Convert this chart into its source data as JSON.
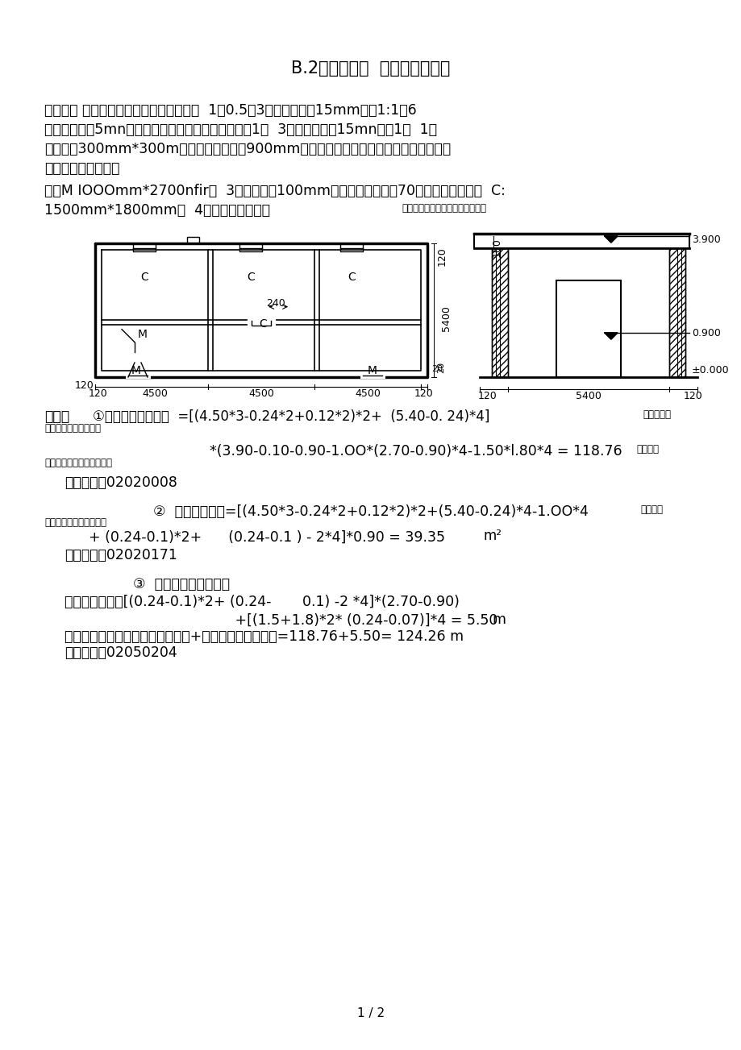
{
  "title": "B.2墙柱面工程  课堂作业及答案",
  "background_color": "#ffffff",
  "p1_line1": "《习题》 某工程如图所示，内砖墙墙面抖  1：0.5：3混合砂浆打幵15mm厚，1:1：6",
  "p1_line2": "混合砂浆面层5mn厚，双飞粉膁子两遍；内墙裙采用1：  3水泥砂浆打幵15mn厚，1：  1水",
  "p1_line3": "泥砂浆贴300mm*300m陶瓷面砖，墙裙高900mm计算内墙面、墙裙抖灰及刁膁子工程量，",
  "p1_line4": "确定套用定额子目。",
  "p2_line1": "木门M IOOOmm*2700nfir共  3个，门框厚100mm按墙中心线安装；70系列铝合金推拉窗  C:",
  "p2_line2": "1500mm*1800mm共  4个，靠外墙安装。",
  "p2_small": "资料个人收集整理，勿做商业用途",
  "sol_label": "》解《",
  "sol_1a": "①内墙面抖灰工程量  =[(4.50*3-0.24*2+0.12*2)*2+  (5.40-0. 24)*4]",
  "sol_1a_r": "资料个人收",
  "sol_1b": "集整理，勿做商业用途",
  "sol_1c": "*(3.90-0.10-0.90-1.OO*(2.70-0.90)*4-1.50*l.80*4 = 118.76",
  "sol_1c_r": "川资料个",
  "sol_1d": "人收集整理，勿做商业用途",
  "sol_quota1": "套用定额：02020008",
  "sol_2a": "②  内墙裙工程量=[(4.50*3-0.24*2+0.12*2)*2+(5.40-0.24)*4-1.OO*4",
  "sol_2a_r1": "资料个人",
  "sol_2a_r2": "收集整理，勿做商业用途",
  "sol_2b": "+ (0.24-0.1)*2+      (0.24-0.1 ) - 2*4]*0.90 = 39.35",
  "sol_2b_unit": "m²",
  "sol_quota2": "套用定额：02020171",
  "sol_3title": "③  刁双飞粉膁子工程置",
  "sol_3a": "门窗洞口侧壁：[(0.24-0.1)*2+ (0.24-       0.1) -2 *4]*(2.70-0.90)",
  "sol_3b": "                       +[(1.5+1.8)*2* (0.24-0.07)]*4 = 5.50",
  "sol_3b_unit": "m",
  "sol_3c": "刁双飞粉膁子工程量二抖灰工程量+门窗洞口侧壁工程量=118.76+5.50= 124.26 m",
  "sol_quota3": "套用定额：02050204",
  "page_num": "1 / 2"
}
